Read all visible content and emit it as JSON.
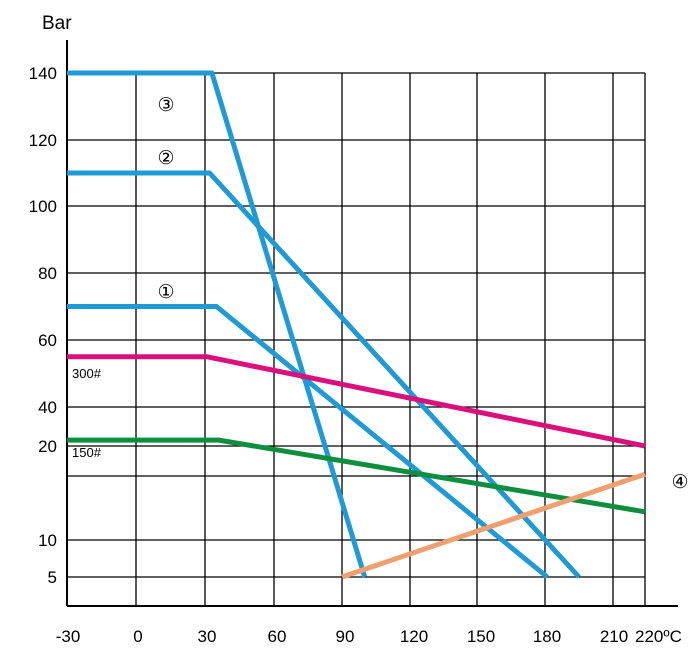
{
  "chart_data": {
    "type": "line",
    "ylabel": "Bar",
    "x_ticks": [
      "-30",
      "0",
      "30",
      "60",
      "90",
      "120",
      "150",
      "180",
      "210"
    ],
    "x_unit_label": "220ºC",
    "y_ticks": [
      "140",
      "120",
      "100",
      "80",
      "60",
      "40",
      "20",
      "10",
      "5"
    ],
    "y_tick_values": [
      140,
      120,
      100,
      80,
      60,
      40,
      20,
      10,
      5
    ],
    "xlim": [
      -30,
      220
    ],
    "grid": true,
    "series": [
      {
        "name": "③",
        "color": "#1E9AD6",
        "x": [
          -30,
          33,
          100
        ],
        "y": [
          140,
          140,
          5
        ]
      },
      {
        "name": "②",
        "color": "#1E9AD6",
        "x": [
          -30,
          32,
          195
        ],
        "y": [
          110,
          110,
          5
        ]
      },
      {
        "name": "①",
        "color": "#1E9AD6",
        "x": [
          -30,
          35,
          181
        ],
        "y": [
          70,
          70,
          5
        ]
      },
      {
        "name": "300#",
        "color": "#D8117D",
        "x": [
          -30,
          31,
          220
        ],
        "y": [
          55,
          55,
          20
        ]
      },
      {
        "name": "150#",
        "color": "#0E8F3E",
        "x": [
          -30,
          36,
          220
        ],
        "y": [
          23,
          23,
          13
        ]
      },
      {
        "name": "④",
        "color": "#F0A070",
        "x": [
          90,
          220
        ],
        "y": [
          5,
          17
        ]
      }
    ]
  }
}
